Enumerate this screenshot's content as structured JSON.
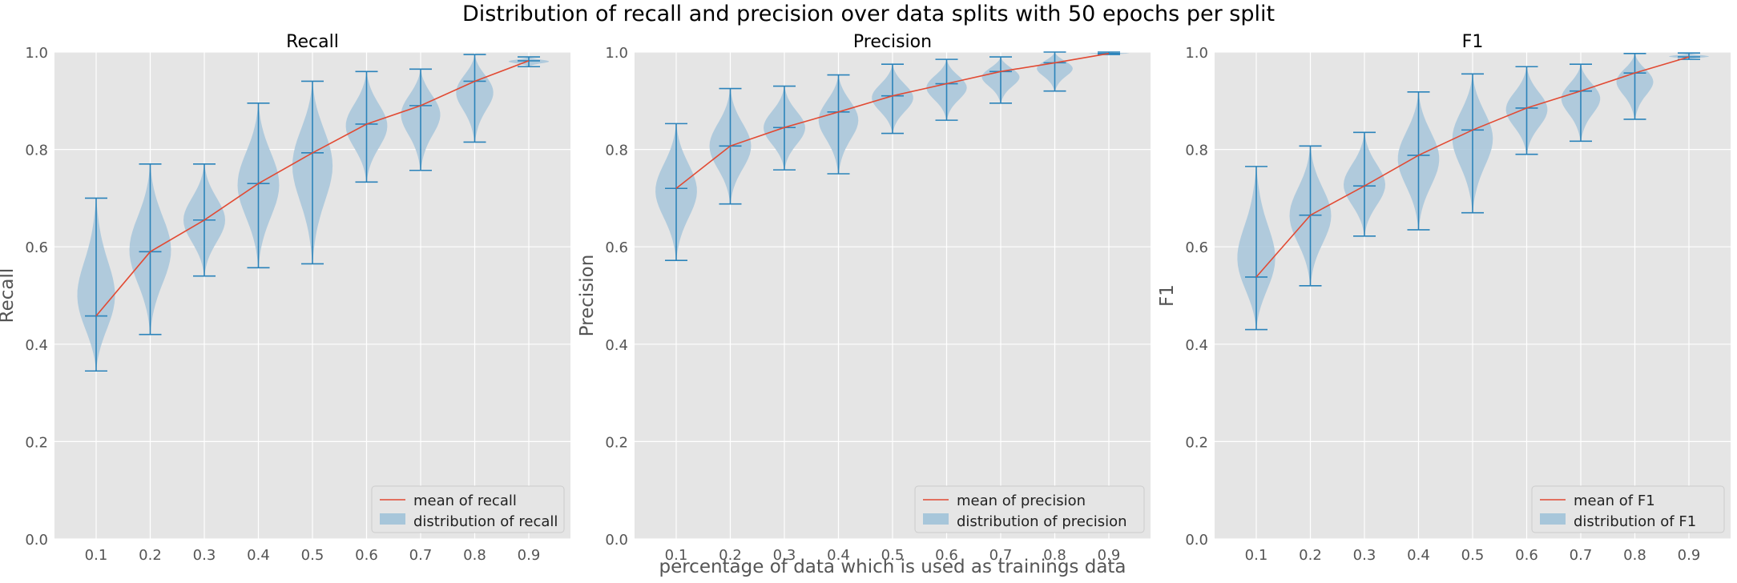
{
  "suptitle": "Distribution of recall and precision over data splits with 50 epochs per split",
  "common_xlabel": "percentage of data which is used as trainings data",
  "colors": {
    "panel_bg": "#e5e5e5",
    "grid": "#ffffff",
    "violin_fill": "#a7c6da",
    "violin_stroke": "#2b83ba",
    "mean_line": "#e24a33",
    "tick_text": "#555555"
  },
  "chart_data": [
    {
      "type": "violin",
      "title": "Recall",
      "ylabel": "Recall",
      "xlabel": "",
      "ylim": [
        0,
        1.0
      ],
      "yticks": [
        "0.0",
        "0.2",
        "0.4",
        "0.6",
        "0.8",
        "1.0"
      ],
      "categories": [
        "0.1",
        "0.2",
        "0.3",
        "0.4",
        "0.5",
        "0.6",
        "0.7",
        "0.8",
        "0.9"
      ],
      "min": [
        0.345,
        0.42,
        0.54,
        0.557,
        0.565,
        0.733,
        0.757,
        0.815,
        0.97
      ],
      "max": [
        0.7,
        0.77,
        0.77,
        0.895,
        0.94,
        0.96,
        0.965,
        0.995,
        0.99
      ],
      "mean": [
        0.458,
        0.59,
        0.655,
        0.73,
        0.793,
        0.852,
        0.89,
        0.94,
        0.982
      ],
      "legend_loc": "lower-right",
      "legend": [
        "mean of recall",
        "distribution of recall"
      ]
    },
    {
      "type": "violin",
      "title": "Precision",
      "ylabel": "Precision",
      "xlabel": "",
      "ylim": [
        0,
        1.0
      ],
      "yticks": [
        "0.0",
        "0.2",
        "0.4",
        "0.6",
        "0.8",
        "1.0"
      ],
      "categories": [
        "0.1",
        "0.2",
        "0.3",
        "0.4",
        "0.5",
        "0.6",
        "0.7",
        "0.8",
        "0.9"
      ],
      "min": [
        0.572,
        0.688,
        0.758,
        0.75,
        0.833,
        0.86,
        0.895,
        0.92,
        0.995
      ],
      "max": [
        0.853,
        0.925,
        0.93,
        0.953,
        0.975,
        0.985,
        0.99,
        1.0,
        1.0
      ],
      "mean": [
        0.72,
        0.807,
        0.845,
        0.877,
        0.91,
        0.935,
        0.96,
        0.978,
        0.997
      ],
      "legend_loc": "lower-right",
      "legend": [
        "mean of precision",
        "distribution of precision"
      ]
    },
    {
      "type": "violin",
      "title": "F1",
      "ylabel": "F1",
      "xlabel": "",
      "ylim": [
        0,
        1.0
      ],
      "yticks": [
        "0.0",
        "0.2",
        "0.4",
        "0.6",
        "0.8",
        "1.0"
      ],
      "categories": [
        "0.1",
        "0.2",
        "0.3",
        "0.4",
        "0.5",
        "0.6",
        "0.7",
        "0.8",
        "0.9"
      ],
      "min": [
        0.43,
        0.52,
        0.622,
        0.635,
        0.67,
        0.79,
        0.817,
        0.862,
        0.985
      ],
      "max": [
        0.765,
        0.807,
        0.835,
        0.918,
        0.955,
        0.97,
        0.975,
        0.997,
        0.998
      ],
      "mean": [
        0.538,
        0.665,
        0.725,
        0.788,
        0.84,
        0.885,
        0.92,
        0.957,
        0.99
      ],
      "legend_loc": "lower-right",
      "legend": [
        "mean of F1",
        "distribution of F1"
      ]
    }
  ]
}
